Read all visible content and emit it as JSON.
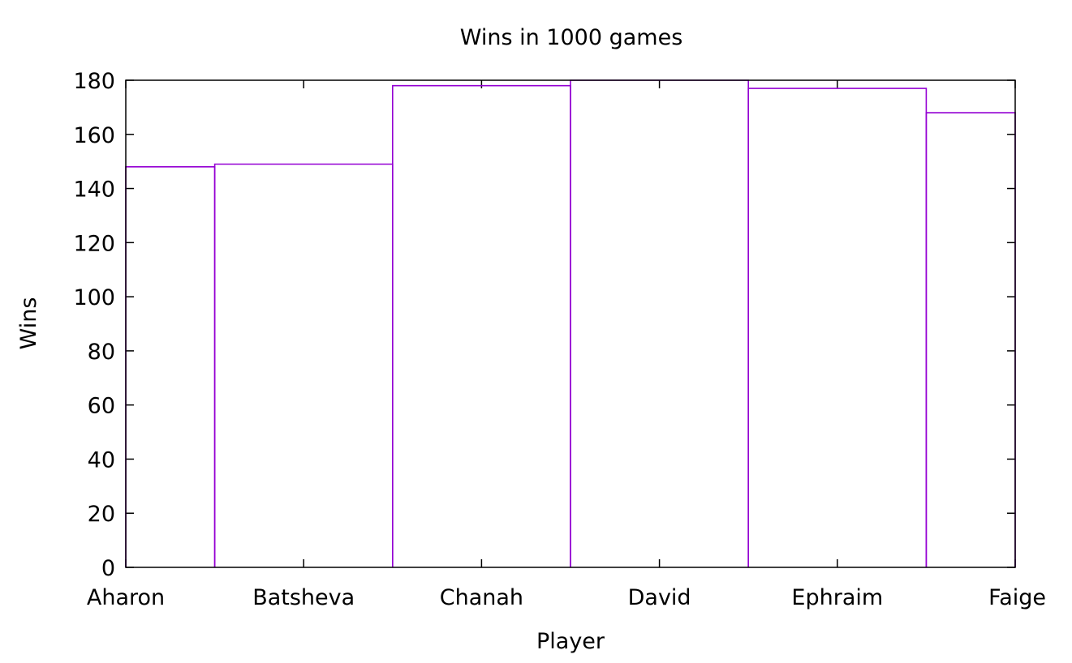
{
  "chart_data": {
    "type": "bar",
    "style": "steps",
    "title": "Wins in 1000 games",
    "xlabel": "Player",
    "ylabel": "Wins",
    "categories": [
      "Aharon",
      "Batsheva",
      "Chanah",
      "David",
      "Ephraim",
      "Faige"
    ],
    "series": [
      {
        "values": [
          148,
          149,
          178,
          180,
          177,
          168
        ]
      }
    ],
    "ylim": [
      0,
      180
    ],
    "yticks": [
      0,
      20,
      40,
      60,
      80,
      100,
      120,
      140,
      160,
      180
    ],
    "grid": false,
    "legend": "none",
    "colors": {
      "series": "#9400d3",
      "axis": "#000000",
      "background": "#ffffff"
    }
  }
}
